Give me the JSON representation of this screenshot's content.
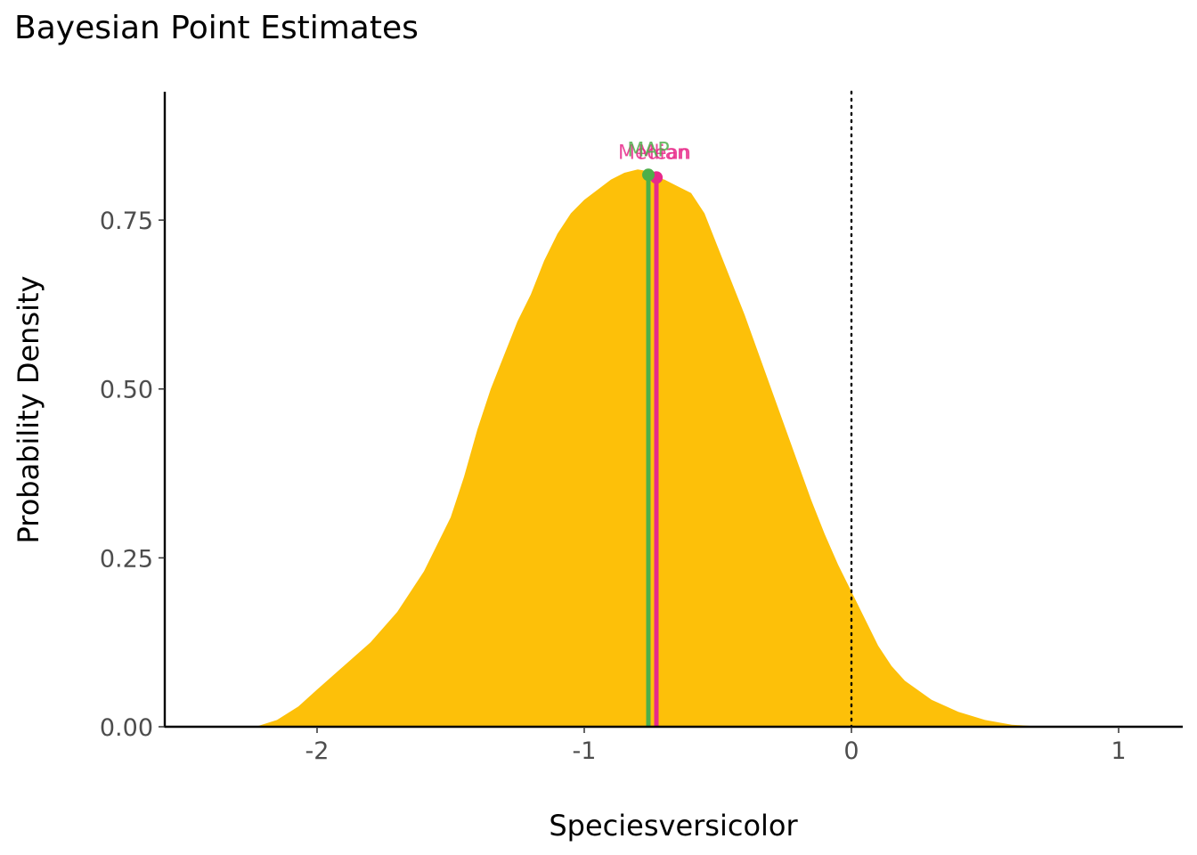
{
  "chart_data": {
    "type": "area",
    "title": "Bayesian Point Estimates",
    "xlabel": "Speciesversicolor",
    "ylabel": "Probability Density",
    "xlim": [
      -2.57,
      1.24
    ],
    "ylim": [
      0,
      0.94
    ],
    "x_ticks": [
      -2,
      -1,
      0,
      1
    ],
    "x_tick_labels": [
      "-2",
      "-1",
      "0",
      "1"
    ],
    "y_ticks": [
      0,
      0.25,
      0.5,
      0.75
    ],
    "y_tick_labels": [
      "0.00",
      "0.25",
      "0.50",
      "0.75"
    ],
    "grid": false,
    "fill_color": "#FDC009",
    "reference_line": {
      "x": 0,
      "style": "dotted",
      "color": "#000000"
    },
    "density": {
      "x": [
        -2.23,
        -2.15,
        -2.07,
        -2.0,
        -1.9,
        -1.8,
        -1.7,
        -1.6,
        -1.5,
        -1.45,
        -1.4,
        -1.35,
        -1.3,
        -1.25,
        -1.2,
        -1.15,
        -1.1,
        -1.05,
        -1.0,
        -0.95,
        -0.9,
        -0.85,
        -0.8,
        -0.77,
        -0.75,
        -0.7,
        -0.65,
        -0.6,
        -0.55,
        -0.5,
        -0.45,
        -0.4,
        -0.35,
        -0.3,
        -0.25,
        -0.2,
        -0.15,
        -0.1,
        -0.05,
        0.0,
        0.05,
        0.1,
        0.15,
        0.2,
        0.3,
        0.4,
        0.5,
        0.6,
        0.7,
        0.8
      ],
      "y": [
        0.0,
        0.01,
        0.03,
        0.055,
        0.09,
        0.125,
        0.17,
        0.23,
        0.31,
        0.37,
        0.44,
        0.5,
        0.55,
        0.6,
        0.64,
        0.69,
        0.73,
        0.76,
        0.78,
        0.795,
        0.81,
        0.82,
        0.825,
        0.823,
        0.815,
        0.81,
        0.8,
        0.79,
        0.76,
        0.71,
        0.66,
        0.61,
        0.555,
        0.5,
        0.445,
        0.39,
        0.335,
        0.285,
        0.24,
        0.2,
        0.16,
        0.12,
        0.09,
        0.068,
        0.04,
        0.022,
        0.01,
        0.003,
        0.0005,
        0.0
      ]
    },
    "estimates": [
      {
        "name": "Mean",
        "x": -0.73,
        "y": 0.813,
        "color": "#E7298A",
        "label_x_offset": 0.03
      },
      {
        "name": "Median",
        "x": -0.73,
        "y": 0.813,
        "color": "#E7298A",
        "label_x_offset": -0.01
      },
      {
        "name": "MAP",
        "x": -0.76,
        "y": 0.817,
        "color": "#4DAF4A",
        "label_x_offset": 0.0
      }
    ]
  }
}
